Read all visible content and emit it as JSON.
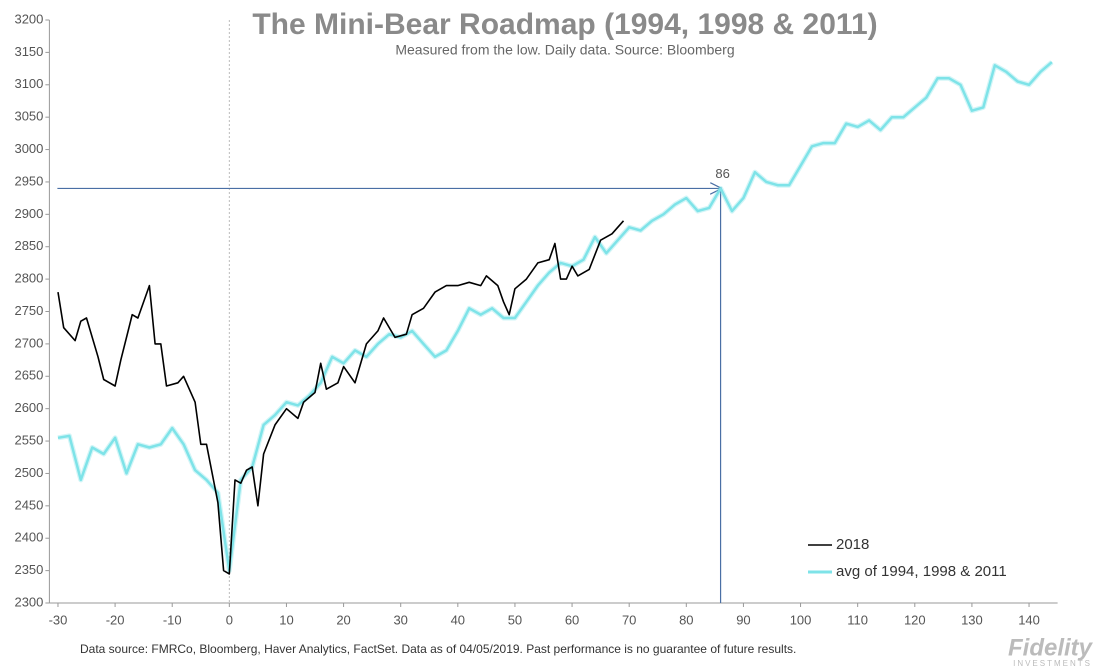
{
  "chart_data": {
    "type": "line",
    "title": "The Mini-Bear Roadmap (1994, 1998 & 2011)",
    "subtitle": "Measured from the low.  Daily data.  Source: Bloomberg",
    "xlim": [
      -31.5,
      145
    ],
    "ylim": [
      2300,
      3200
    ],
    "xticks": [
      -30,
      -20,
      -10,
      0,
      10,
      20,
      30,
      40,
      50,
      60,
      70,
      80,
      90,
      100,
      110,
      120,
      130,
      140
    ],
    "yticks": [
      2300,
      2350,
      2400,
      2450,
      2500,
      2550,
      2600,
      2650,
      2700,
      2750,
      2800,
      2850,
      2900,
      2950,
      3000,
      3050,
      3100,
      3150,
      3200
    ],
    "legend": "lower right",
    "series": [
      {
        "name": "2018",
        "color": "#000000",
        "x": [
          -30,
          -29,
          -27,
          -26,
          -25,
          -23,
          -22,
          -20,
          -19,
          -17,
          -16,
          -14,
          -13,
          -12,
          -11,
          -9,
          -8,
          -6,
          -5,
          -4,
          -2,
          -1,
          0,
          1,
          2,
          3,
          4,
          5,
          6,
          8,
          10,
          12,
          13,
          15,
          16,
          17,
          19,
          20,
          22,
          24,
          26,
          27,
          29,
          31,
          32,
          34,
          36,
          38,
          40,
          42,
          44,
          45,
          47,
          48,
          49,
          50,
          52,
          54,
          56,
          57,
          58,
          59,
          60,
          61,
          63,
          65,
          67,
          69
        ],
        "values": [
          2780,
          2725,
          2705,
          2735,
          2740,
          2680,
          2645,
          2635,
          2675,
          2745,
          2740,
          2790,
          2700,
          2700,
          2635,
          2640,
          2650,
          2610,
          2545,
          2545,
          2455,
          2350,
          2345,
          2490,
          2485,
          2505,
          2510,
          2450,
          2530,
          2575,
          2600,
          2585,
          2610,
          2625,
          2670,
          2630,
          2640,
          2665,
          2640,
          2700,
          2720,
          2740,
          2710,
          2715,
          2745,
          2755,
          2780,
          2790,
          2790,
          2795,
          2790,
          2805,
          2790,
          2765,
          2745,
          2785,
          2800,
          2825,
          2830,
          2855,
          2800,
          2800,
          2820,
          2805,
          2815,
          2860,
          2870,
          2890
        ]
      },
      {
        "name": "avg of 1994, 1998 & 2011",
        "color": "#7ee3e8",
        "x": [
          -30,
          -28,
          -26,
          -24,
          -22,
          -20,
          -18,
          -16,
          -14,
          -12,
          -10,
          -8,
          -6,
          -4,
          -2,
          0,
          2,
          4,
          6,
          8,
          10,
          12,
          14,
          16,
          18,
          20,
          22,
          24,
          26,
          28,
          30,
          32,
          34,
          36,
          38,
          40,
          42,
          44,
          46,
          48,
          50,
          52,
          54,
          56,
          58,
          60,
          62,
          64,
          66,
          68,
          70,
          72,
          74,
          76,
          78,
          80,
          82,
          84,
          86,
          88,
          90,
          92,
          94,
          96,
          98,
          100,
          102,
          104,
          106,
          108,
          110,
          112,
          114,
          116,
          118,
          120,
          122,
          124,
          126,
          128,
          130,
          132,
          134,
          136,
          138,
          140,
          142,
          144
        ],
        "values": [
          2555,
          2558,
          2490,
          2540,
          2530,
          2555,
          2500,
          2545,
          2540,
          2545,
          2570,
          2545,
          2505,
          2490,
          2470,
          2350,
          2490,
          2510,
          2575,
          2590,
          2610,
          2605,
          2620,
          2640,
          2680,
          2670,
          2690,
          2680,
          2700,
          2715,
          2710,
          2720,
          2700,
          2680,
          2690,
          2720,
          2755,
          2745,
          2755,
          2740,
          2740,
          2765,
          2790,
          2810,
          2825,
          2820,
          2830,
          2865,
          2840,
          2860,
          2880,
          2875,
          2890,
          2900,
          2915,
          2925,
          2905,
          2910,
          2940,
          2905,
          2925,
          2965,
          2950,
          2945,
          2945,
          2975,
          3005,
          3010,
          3010,
          3040,
          3035,
          3045,
          3030,
          3050,
          3050,
          3065,
          3080,
          3110,
          3110,
          3100,
          3060,
          3065,
          3130,
          3120,
          3105,
          3100,
          3120,
          3135
        ]
      }
    ],
    "annotation": {
      "x": 86,
      "y": 2940
    },
    "footnote": "Data source: FMRCo, Bloomberg, Haver Analytics, FactSet.  Data as of 04/05/2019. Past performance is no guarantee of future results.",
    "logo": "Fidelity",
    "logo_sub": "INVESTMENTS"
  }
}
